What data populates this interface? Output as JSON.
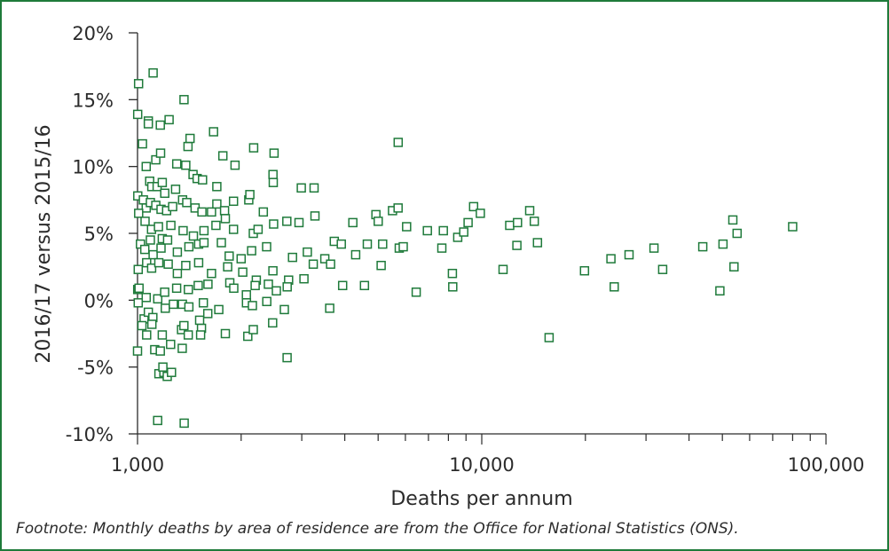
{
  "chart_data": {
    "type": "scatter",
    "title": "",
    "xlabel": "Deaths per annum",
    "ylabel": "2016/17 versus 2015/16",
    "x_scale": "log",
    "xlim": [
      1000,
      100000
    ],
    "ylim": [
      -10,
      20
    ],
    "x_ticks": [
      1000,
      10000,
      100000
    ],
    "x_tick_labels": [
      "1,000",
      "10,000",
      "100,000"
    ],
    "y_ticks": [
      -10,
      -5,
      0,
      5,
      10,
      15,
      20
    ],
    "y_tick_labels": [
      "-10%",
      "-5%",
      "0%",
      "5%",
      "10%",
      "15%",
      "20%"
    ],
    "marker": "open-square",
    "color": "#1e7a3a",
    "grid": false,
    "legend": "none",
    "points": [
      [
        1007,
        16.2
      ],
      [
        1110,
        17.0
      ],
      [
        1001,
        13.9
      ],
      [
        1075,
        13.4
      ],
      [
        1075,
        13.2
      ],
      [
        1165,
        13.1
      ],
      [
        1235,
        13.5
      ],
      [
        1365,
        15.0
      ],
      [
        1034,
        11.7
      ],
      [
        1130,
        10.5
      ],
      [
        1167,
        11.0
      ],
      [
        1402,
        11.5
      ],
      [
        1421,
        12.1
      ],
      [
        1663,
        12.6
      ],
      [
        2175,
        11.4
      ],
      [
        2493,
        11.0
      ],
      [
        5716,
        11.8
      ],
      [
        1060,
        10.0
      ],
      [
        1085,
        8.9
      ],
      [
        1100,
        8.5
      ],
      [
        1140,
        8.5
      ],
      [
        1180,
        8.8
      ],
      [
        1200,
        8.0
      ],
      [
        1290,
        8.3
      ],
      [
        1300,
        10.2
      ],
      [
        1381,
        10.1
      ],
      [
        1450,
        9.4
      ],
      [
        1490,
        9.1
      ],
      [
        1545,
        9.0
      ],
      [
        1700,
        8.5
      ],
      [
        1770,
        10.8
      ],
      [
        1920,
        10.1
      ],
      [
        2475,
        9.4
      ],
      [
        2480,
        8.8
      ],
      [
        2990,
        8.4
      ],
      [
        3258,
        8.4
      ],
      [
        1002,
        7.8
      ],
      [
        1040,
        7.5
      ],
      [
        1060,
        6.9
      ],
      [
        1090,
        7.3
      ],
      [
        1130,
        7.1
      ],
      [
        1170,
        6.8
      ],
      [
        1215,
        6.7
      ],
      [
        1265,
        7.0
      ],
      [
        1352,
        7.5
      ],
      [
        1390,
        7.3
      ],
      [
        1470,
        6.9
      ],
      [
        1539,
        6.6
      ],
      [
        1640,
        6.6
      ],
      [
        1700,
        7.2
      ],
      [
        1790,
        6.7
      ],
      [
        1900,
        7.4
      ],
      [
        2105,
        7.5
      ],
      [
        2120,
        7.9
      ],
      [
        2320,
        6.6
      ],
      [
        2715,
        5.9
      ],
      [
        3276,
        6.3
      ],
      [
        1008,
        6.5
      ],
      [
        1052,
        5.9
      ],
      [
        1098,
        5.3
      ],
      [
        1150,
        5.5
      ],
      [
        1180,
        4.6
      ],
      [
        1250,
        5.6
      ],
      [
        1357,
        5.2
      ],
      [
        1453,
        4.8
      ],
      [
        1560,
        5.2
      ],
      [
        1690,
        5.6
      ],
      [
        1800,
        6.1
      ],
      [
        1900,
        5.3
      ],
      [
        2170,
        5.0
      ],
      [
        2240,
        5.3
      ],
      [
        2485,
        5.7
      ],
      [
        2945,
        5.8
      ],
      [
        4222,
        5.8
      ],
      [
        4925,
        6.4
      ],
      [
        5004,
        5.9
      ],
      [
        5505,
        6.7
      ],
      [
        5714,
        6.9
      ],
      [
        6048,
        5.5
      ],
      [
        6950,
        5.2
      ],
      [
        7732,
        5.2
      ],
      [
        8514,
        4.7
      ],
      [
        8864,
        5.1
      ],
      [
        9124,
        5.8
      ],
      [
        9467,
        7.0
      ],
      [
        9904,
        6.5
      ],
      [
        12052,
        5.6
      ],
      [
        12703,
        5.8
      ],
      [
        13777,
        6.7
      ],
      [
        14211,
        5.9
      ],
      [
        14516,
        4.3
      ],
      [
        23734,
        3.1
      ],
      [
        26776,
        3.4
      ],
      [
        31634,
        3.9
      ],
      [
        33534,
        2.3
      ],
      [
        43865,
        4.0
      ],
      [
        50205,
        4.2
      ],
      [
        53618,
        6.0
      ],
      [
        55171,
        5.0
      ],
      [
        79991,
        5.5
      ],
      [
        1020,
        4.2
      ],
      [
        1050,
        3.8
      ],
      [
        1090,
        4.5
      ],
      [
        1110,
        3.4
      ],
      [
        1170,
        3.9
      ],
      [
        1223,
        4.5
      ],
      [
        1305,
        3.6
      ],
      [
        1410,
        4.0
      ],
      [
        1505,
        4.2
      ],
      [
        1560,
        4.3
      ],
      [
        1752,
        4.3
      ],
      [
        1846,
        3.3
      ],
      [
        2000,
        3.1
      ],
      [
        2145,
        3.7
      ],
      [
        2372,
        4.0
      ],
      [
        2820,
        3.2
      ],
      [
        3113,
        3.6
      ],
      [
        3499,
        3.1
      ],
      [
        3729,
        4.4
      ],
      [
        3909,
        4.2
      ],
      [
        4303,
        3.4
      ],
      [
        4651,
        4.2
      ],
      [
        5155,
        4.2
      ],
      [
        5760,
        3.9
      ],
      [
        5915,
        4.0
      ],
      [
        7658,
        3.9
      ],
      [
        12651,
        4.1
      ],
      [
        1005,
        2.3
      ],
      [
        1063,
        2.8
      ],
      [
        1099,
        2.4
      ],
      [
        1153,
        2.8
      ],
      [
        1228,
        2.7
      ],
      [
        1305,
        2.0
      ],
      [
        1381,
        2.6
      ],
      [
        1505,
        2.8
      ],
      [
        1640,
        2.0
      ],
      [
        1828,
        2.5
      ],
      [
        2021,
        2.1
      ],
      [
        2214,
        1.5
      ],
      [
        2474,
        2.2
      ],
      [
        2747,
        1.5
      ],
      [
        3044,
        1.6
      ],
      [
        3240,
        2.7
      ],
      [
        3638,
        2.7
      ],
      [
        5103,
        2.6
      ],
      [
        8216,
        2.0
      ],
      [
        11532,
        2.3
      ],
      [
        19885,
        2.2
      ],
      [
        54037,
        2.5
      ],
      [
        1001,
        0.8
      ],
      [
        1010,
        0.9
      ],
      [
        1060,
        0.2
      ],
      [
        1145,
        0.1
      ],
      [
        1199,
        0.6
      ],
      [
        1299,
        0.9
      ],
      [
        1405,
        0.8
      ],
      [
        1501,
        1.1
      ],
      [
        1602,
        1.2
      ],
      [
        1854,
        1.3
      ],
      [
        1904,
        0.9
      ],
      [
        2071,
        0.4
      ],
      [
        2197,
        1.1
      ],
      [
        2400,
        1.2
      ],
      [
        2531,
        0.7
      ],
      [
        2721,
        1.0
      ],
      [
        3944,
        1.1
      ],
      [
        4564,
        1.1
      ],
      [
        6451,
        0.6
      ],
      [
        8236,
        1.0
      ],
      [
        24254,
        1.0
      ],
      [
        49184,
        0.7
      ],
      [
        1005,
        -0.2
      ],
      [
        1045,
        -1.4
      ],
      [
        1075,
        -0.9
      ],
      [
        1108,
        -1.3
      ],
      [
        1204,
        -0.6
      ],
      [
        1271,
        -0.3
      ],
      [
        1350,
        -0.3
      ],
      [
        1410,
        -0.5
      ],
      [
        1553,
        -0.2
      ],
      [
        1600,
        -1.0
      ],
      [
        1722,
        -0.7
      ],
      [
        2073,
        -0.2
      ],
      [
        2156,
        -0.4
      ],
      [
        2374,
        -0.1
      ],
      [
        2670,
        -0.7
      ],
      [
        3617,
        -0.6
      ],
      [
        1030,
        -1.9
      ],
      [
        1101,
        -1.8
      ],
      [
        1180,
        -2.6
      ],
      [
        1342,
        -2.2
      ],
      [
        1364,
        -1.9
      ],
      [
        1534,
        -2.1
      ],
      [
        1515,
        -1.5
      ],
      [
        1799,
        -2.5
      ],
      [
        2091,
        -2.7
      ],
      [
        2170,
        -2.2
      ],
      [
        2469,
        -1.7
      ],
      [
        15690,
        -2.8
      ],
      [
        1000,
        -3.8
      ],
      [
        1063,
        -2.6
      ],
      [
        1122,
        -3.7
      ],
      [
        1165,
        -3.8
      ],
      [
        1248,
        -3.3
      ],
      [
        1349,
        -3.6
      ],
      [
        1404,
        -2.6
      ],
      [
        1525,
        -2.6
      ],
      [
        1154,
        -5.5
      ],
      [
        1193,
        -5.4
      ],
      [
        1220,
        -5.7
      ],
      [
        1255,
        -5.4
      ],
      [
        1185,
        -5.0
      ],
      [
        2719,
        -4.3
      ],
      [
        1144,
        -9.0
      ],
      [
        1366,
        -9.2
      ]
    ]
  },
  "footnote": "Footnote: Monthly deaths by area of residence are from the Office for National Statistics (ONS)."
}
